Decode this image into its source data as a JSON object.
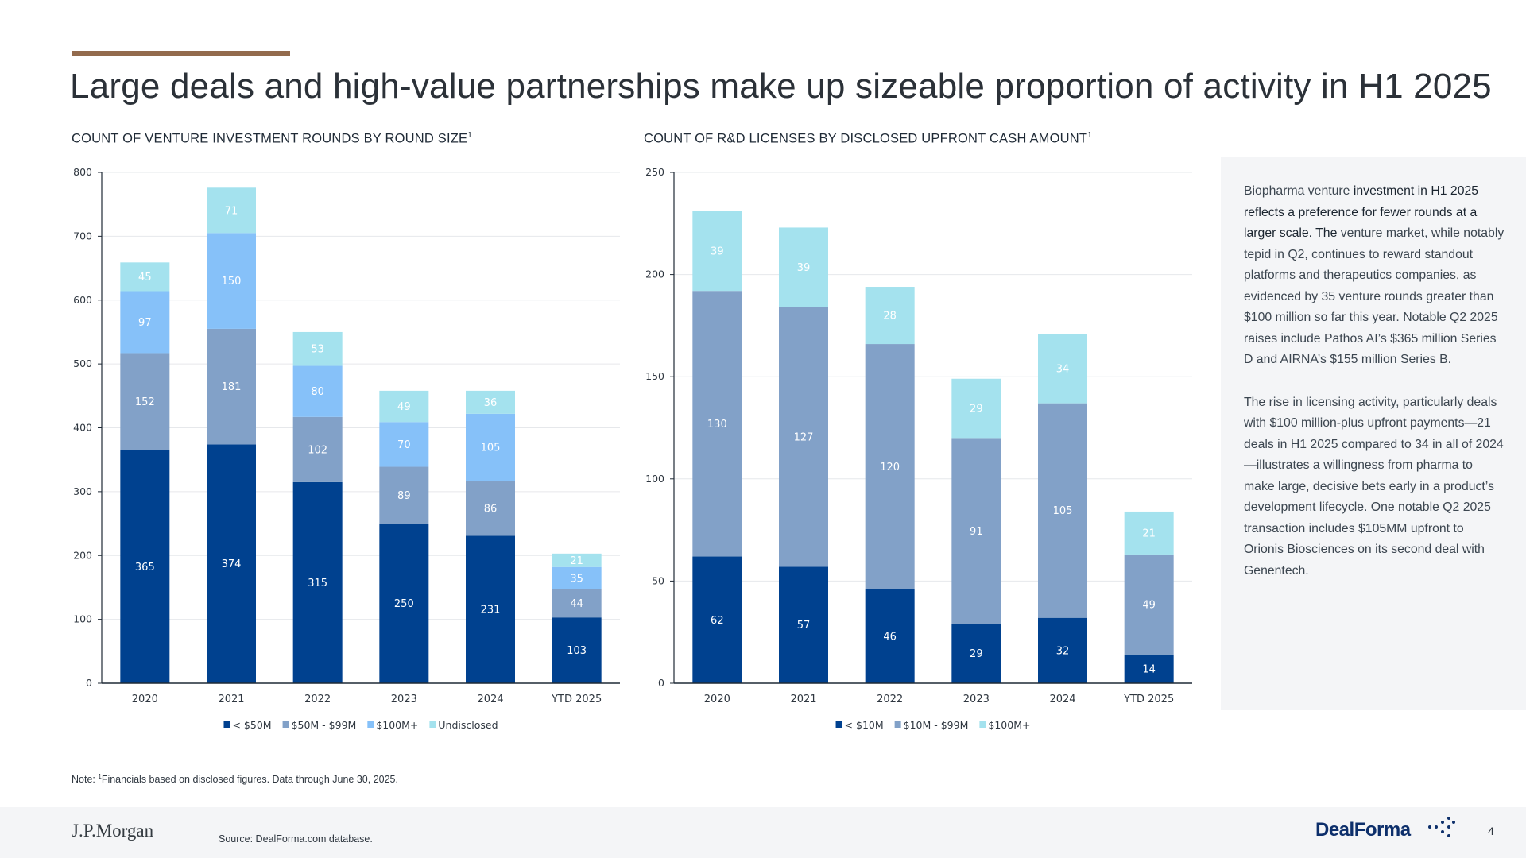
{
  "slide": {
    "title": "Large deals and high-value partnerships make up sizeable proportion of activity in H1 2025",
    "page_number": "4"
  },
  "colors": {
    "accent": "#936b4d",
    "series_a": "#00418f",
    "series_b": "#82a1c8",
    "series_c": "#86c1f9",
    "series_d": "#a4e2ee"
  },
  "chart_data": [
    {
      "type": "bar",
      "stacked": true,
      "title": "COUNT OF VENTURE INVESTMENT ROUNDS BY ROUND SIZE",
      "title_superscript": "1",
      "categories": [
        "2020",
        "2021",
        "2022",
        "2023",
        "2024",
        "YTD 2025"
      ],
      "series": [
        {
          "name": "< $50M",
          "color": "#00418f",
          "values": [
            365,
            374,
            315,
            250,
            231,
            103
          ]
        },
        {
          "name": "$50M - $99M",
          "color": "#82a1c8",
          "values": [
            152,
            181,
            102,
            89,
            86,
            44
          ]
        },
        {
          "name": "$100M+",
          "color": "#86c1f9",
          "values": [
            97,
            150,
            80,
            70,
            105,
            35
          ]
        },
        {
          "name": "Undisclosed",
          "color": "#a4e2ee",
          "values": [
            45,
            71,
            53,
            49,
            36,
            21
          ]
        }
      ],
      "ylim": [
        0,
        800
      ],
      "yticks": [
        0,
        100,
        200,
        300,
        400,
        500,
        600,
        700,
        800
      ],
      "grid": true,
      "legend": "bottom-center"
    },
    {
      "type": "bar",
      "stacked": true,
      "title": "COUNT OF R&D LICENSES BY DISCLOSED UPFRONT CASH AMOUNT",
      "title_superscript": "1",
      "categories": [
        "2020",
        "2021",
        "2022",
        "2023",
        "2024",
        "YTD 2025"
      ],
      "series": [
        {
          "name": "< $10M",
          "color": "#00418f",
          "values": [
            62,
            57,
            46,
            29,
            32,
            14
          ]
        },
        {
          "name": "$10M - $99M",
          "color": "#82a1c8",
          "values": [
            130,
            127,
            120,
            91,
            105,
            49
          ]
        },
        {
          "name": "$100M+",
          "color": "#a4e2ee",
          "values": [
            39,
            39,
            28,
            29,
            34,
            21
          ]
        }
      ],
      "ylim": [
        0,
        250
      ],
      "yticks": [
        0,
        50,
        100,
        150,
        200,
        250
      ],
      "grid": true,
      "legend": "bottom-center"
    }
  ],
  "commentary": {
    "p1_a": "Biopharma venture ",
    "p1_b": "investment in H1 2025 reflects a preference for fewer rounds at a larger scale. The",
    "p1_c": " venture market, while notably tepid in Q2, continues to reward standout platforms and therapeutics companies, as evidenced by 35 venture rounds greater than $100 million so far this year. Notable Q2 2025 raises include Pathos AI’s $365 million Series D and AIRNA’s $155 million Series B.",
    "p2": "The rise in licensing activity, particularly deals with $100 million-plus upfront payments—21 deals in H1 2025 compared to 34 in all of 2024—illustrates a willingness from pharma to make large, decisive bets early in a product’s development lifecycle. One notable Q2 2025 transaction includes $105MM upfront to Orionis Biosciences on its second deal with Genentech."
  },
  "note": {
    "prefix": "Note: ",
    "sup": "1",
    "text": "Financials based on disclosed figures. Data through June 30, 2025."
  },
  "source": "Source: DealForma.com database.",
  "logos": {
    "jpmorgan": "J.P.Morgan",
    "dealforma": "DealForma"
  }
}
